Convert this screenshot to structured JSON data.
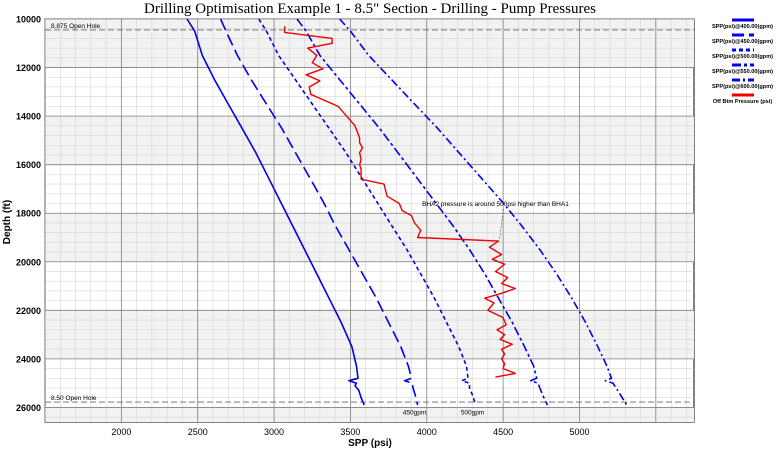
{
  "chart_data": {
    "type": "line",
    "title": "Drilling Optimisation Example 1 - 8.5\" Section - Drilling - Pump Pressures",
    "xlabel": "SPP (psi)",
    "ylabel": "Depth (ft)",
    "xlim": [
      1500,
      5750
    ],
    "ylim": [
      10000,
      26600
    ],
    "y_inverted": true,
    "x_ticks": [
      2000,
      2500,
      3000,
      3500,
      4000,
      4500,
      5000
    ],
    "y_ticks": [
      10000,
      12000,
      14000,
      16000,
      18000,
      20000,
      22000,
      24000,
      26000
    ],
    "grid": true,
    "legend_position": "right",
    "series": [
      {
        "name": "SPP(psi)@400.00(gpm)",
        "color": "#0000ee",
        "dash": "solid",
        "points": [
          [
            2430,
            10000
          ],
          [
            2480,
            10500
          ],
          [
            2530,
            11500
          ],
          [
            2610,
            12500
          ],
          [
            2700,
            13500
          ],
          [
            2790,
            14500
          ],
          [
            2880,
            15500
          ],
          [
            2960,
            16500
          ],
          [
            3040,
            17500
          ],
          [
            3120,
            18500
          ],
          [
            3200,
            19500
          ],
          [
            3280,
            20500
          ],
          [
            3360,
            21500
          ],
          [
            3440,
            22500
          ],
          [
            3510,
            23500
          ],
          [
            3540,
            24300
          ],
          [
            3550,
            24800
          ],
          [
            3490,
            24900
          ],
          [
            3540,
            25000
          ],
          [
            3530,
            25100
          ],
          [
            3555,
            25300
          ],
          [
            3570,
            25600
          ],
          [
            3590,
            25900
          ]
        ]
      },
      {
        "name": "SPP(psi)@450.00(gpm)",
        "color": "#0000ee",
        "dash": "long",
        "points": [
          [
            2650,
            10000
          ],
          [
            2700,
            10700
          ],
          [
            2760,
            11500
          ],
          [
            2850,
            12500
          ],
          [
            2950,
            13500
          ],
          [
            3050,
            14500
          ],
          [
            3140,
            15500
          ],
          [
            3230,
            16500
          ],
          [
            3320,
            17500
          ],
          [
            3400,
            18500
          ],
          [
            3490,
            19500
          ],
          [
            3580,
            20500
          ],
          [
            3670,
            21500
          ],
          [
            3750,
            22500
          ],
          [
            3830,
            23500
          ],
          [
            3880,
            24300
          ],
          [
            3900,
            24800
          ],
          [
            3855,
            24900
          ],
          [
            3905,
            25000
          ],
          [
            3910,
            25200
          ],
          [
            3925,
            25500
          ],
          [
            3940,
            25900
          ]
        ]
      },
      {
        "name": "SPP(psi)@500.00(gpm)",
        "color": "#0000ee",
        "dash": "short",
        "points": [
          [
            2900,
            10000
          ],
          [
            2950,
            10500
          ],
          [
            3030,
            11500
          ],
          [
            3140,
            12500
          ],
          [
            3250,
            13500
          ],
          [
            3360,
            14500
          ],
          [
            3470,
            15500
          ],
          [
            3570,
            16500
          ],
          [
            3670,
            17500
          ],
          [
            3770,
            18500
          ],
          [
            3870,
            19500
          ],
          [
            3960,
            20500
          ],
          [
            4050,
            21500
          ],
          [
            4130,
            22500
          ],
          [
            4210,
            23500
          ],
          [
            4260,
            24300
          ],
          [
            4270,
            24800
          ],
          [
            4230,
            24900
          ],
          [
            4280,
            25000
          ],
          [
            4280,
            25200
          ],
          [
            4300,
            25500
          ],
          [
            4320,
            25900
          ]
        ]
      },
      {
        "name": "SPP(psi)@550.00(gpm)",
        "color": "#0000ee",
        "dash": "long-double",
        "points": [
          [
            3150,
            10000
          ],
          [
            3210,
            10500
          ],
          [
            3300,
            11500
          ],
          [
            3430,
            12500
          ],
          [
            3560,
            13500
          ],
          [
            3690,
            14500
          ],
          [
            3810,
            15500
          ],
          [
            3930,
            16500
          ],
          [
            4050,
            17500
          ],
          [
            4170,
            18500
          ],
          [
            4280,
            19500
          ],
          [
            4380,
            20500
          ],
          [
            4470,
            21500
          ],
          [
            4560,
            22500
          ],
          [
            4640,
            23500
          ],
          [
            4700,
            24300
          ],
          [
            4720,
            24800
          ],
          [
            4680,
            24900
          ],
          [
            4730,
            25000
          ],
          [
            4740,
            25200
          ],
          [
            4760,
            25500
          ],
          [
            4790,
            25900
          ]
        ]
      },
      {
        "name": "SPP(psi)@600.00(gpm)",
        "color": "#0000ee",
        "dash": "dash-dot",
        "points": [
          [
            3430,
            10000
          ],
          [
            3500,
            10500
          ],
          [
            3620,
            11500
          ],
          [
            3770,
            12500
          ],
          [
            3920,
            13500
          ],
          [
            4070,
            14500
          ],
          [
            4210,
            15500
          ],
          [
            4350,
            16500
          ],
          [
            4490,
            17500
          ],
          [
            4620,
            18500
          ],
          [
            4740,
            19500
          ],
          [
            4850,
            20500
          ],
          [
            4950,
            21500
          ],
          [
            5040,
            22500
          ],
          [
            5120,
            23500
          ],
          [
            5180,
            24300
          ],
          [
            5210,
            24800
          ],
          [
            5170,
            24900
          ],
          [
            5220,
            25000
          ],
          [
            5240,
            25200
          ],
          [
            5270,
            25500
          ],
          [
            5310,
            25900
          ]
        ]
      },
      {
        "name": "Off Btm Pressure (psi)",
        "color": "#ee0000",
        "dash": "solid",
        "points": [
          [
            3070,
            10300
          ],
          [
            3070,
            10550
          ],
          [
            3380,
            10800
          ],
          [
            3380,
            11000
          ],
          [
            3220,
            11200
          ],
          [
            3280,
            11500
          ],
          [
            3250,
            11800
          ],
          [
            3320,
            12050
          ],
          [
            3210,
            12300
          ],
          [
            3300,
            12550
          ],
          [
            3230,
            12800
          ],
          [
            3240,
            13100
          ],
          [
            3420,
            13600
          ],
          [
            3530,
            14400
          ],
          [
            3560,
            14900
          ],
          [
            3560,
            15100
          ],
          [
            3580,
            15300
          ],
          [
            3560,
            15500
          ],
          [
            3570,
            15800
          ],
          [
            3560,
            16000
          ],
          [
            3570,
            16200
          ],
          [
            3570,
            16600
          ],
          [
            3720,
            16800
          ],
          [
            3740,
            17300
          ],
          [
            3820,
            17600
          ],
          [
            3840,
            17900
          ],
          [
            3900,
            18100
          ],
          [
            3920,
            18400
          ],
          [
            3960,
            18700
          ],
          [
            3940,
            19000
          ],
          [
            4470,
            19150
          ],
          [
            4410,
            19400
          ],
          [
            4490,
            19700
          ],
          [
            4430,
            19900
          ],
          [
            4510,
            20100
          ],
          [
            4450,
            20400
          ],
          [
            4530,
            20650
          ],
          [
            4490,
            20900
          ],
          [
            4580,
            21100
          ],
          [
            4490,
            21300
          ],
          [
            4380,
            21500
          ],
          [
            4440,
            21700
          ],
          [
            4400,
            22000
          ],
          [
            4500,
            22300
          ],
          [
            4520,
            22600
          ],
          [
            4460,
            22800
          ],
          [
            4510,
            23000
          ],
          [
            4480,
            23200
          ],
          [
            4560,
            23400
          ],
          [
            4490,
            23600
          ],
          [
            4510,
            23800
          ],
          [
            4490,
            24000
          ],
          [
            4510,
            24200
          ],
          [
            4500,
            24400
          ],
          [
            4580,
            24600
          ],
          [
            4450,
            24750
          ]
        ]
      }
    ],
    "annotations": [
      {
        "text": "8.875 Open Hole",
        "type": "hline",
        "y": 10450
      },
      {
        "text": "8.50 Open Hole",
        "type": "hline",
        "y": 25780
      },
      {
        "text": "BHA2 pressure is around 500psi higher than BHA1",
        "x": 4450,
        "y": 17700,
        "arrow_to": [
          4450,
          19150
        ]
      },
      {
        "text": "450gpm",
        "x": 3920,
        "y": 26300
      },
      {
        "text": "500gpm",
        "x": 4300,
        "y": 26300
      }
    ]
  }
}
